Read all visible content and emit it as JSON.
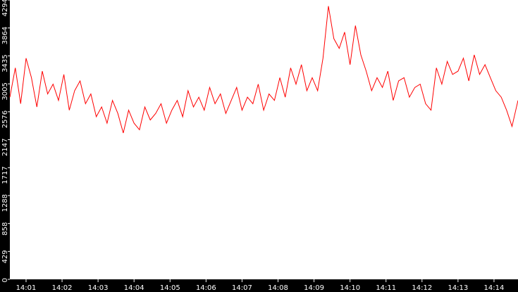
{
  "chart_data": {
    "type": "line",
    "title": "",
    "xlabel": "",
    "ylabel": "",
    "ylim": [
      0,
      4294
    ],
    "y_ticks": [
      0,
      429,
      858,
      1288,
      1717,
      2147,
      2576,
      3005,
      3435,
      3864,
      4294
    ],
    "x_range": [
      "14:00:33",
      "14:14:40"
    ],
    "x_ticks": [
      "14:01",
      "14:02",
      "14:03",
      "14:04",
      "14:05",
      "14:06",
      "14:07",
      "14:08",
      "14:09",
      "14:10",
      "14:11",
      "14:12",
      "14:13",
      "14:14"
    ],
    "grid": false,
    "legend": "none",
    "colors": {
      "line": "#ff0000",
      "plot_background": "#ffffff",
      "frame": "#000000",
      "axis_text": "#ffffff"
    },
    "series": [
      {
        "x": [
          "14:00:33",
          "14:00:42",
          "14:00:51",
          "14:01:00",
          "14:01:09",
          "14:01:18",
          "14:01:27",
          "14:01:36",
          "14:01:45",
          "14:01:54",
          "14:02:03",
          "14:02:12",
          "14:02:21",
          "14:02:30",
          "14:02:39",
          "14:02:48",
          "14:02:57",
          "14:03:06",
          "14:03:15",
          "14:03:24",
          "14:03:33",
          "14:03:42",
          "14:03:51",
          "14:04:00",
          "14:04:09",
          "14:04:18",
          "14:04:27",
          "14:04:36",
          "14:04:45",
          "14:04:54",
          "14:05:03",
          "14:05:12",
          "14:05:21",
          "14:05:30",
          "14:05:39",
          "14:05:48",
          "14:05:57",
          "14:06:06",
          "14:06:15",
          "14:06:24",
          "14:06:33",
          "14:06:42",
          "14:06:51",
          "14:07:00",
          "14:07:09",
          "14:07:18",
          "14:07:27",
          "14:07:36",
          "14:07:45",
          "14:07:54",
          "14:08:03",
          "14:08:12",
          "14:08:21",
          "14:08:30",
          "14:08:39",
          "14:08:48",
          "14:08:57",
          "14:09:06",
          "14:09:15",
          "14:09:24",
          "14:09:33",
          "14:09:42",
          "14:09:51",
          "14:10:00",
          "14:10:09",
          "14:10:18",
          "14:10:27",
          "14:10:36",
          "14:10:45",
          "14:10:54",
          "14:11:03",
          "14:11:12",
          "14:11:21",
          "14:11:30",
          "14:11:39",
          "14:11:48",
          "14:11:57",
          "14:12:06",
          "14:12:15",
          "14:12:24",
          "14:12:33",
          "14:12:42",
          "14:12:51",
          "14:13:00",
          "14:13:09",
          "14:13:18",
          "14:13:27",
          "14:13:36",
          "14:13:45",
          "14:13:54",
          "14:14:03",
          "14:14:12",
          "14:14:21",
          "14:14:30",
          "14:14:40"
        ],
        "y": [
          2800,
          3250,
          2700,
          3400,
          3100,
          2650,
          3200,
          2850,
          3000,
          2750,
          3150,
          2600,
          2900,
          3050,
          2700,
          2850,
          2500,
          2650,
          2400,
          2750,
          2550,
          2250,
          2600,
          2400,
          2300,
          2650,
          2450,
          2550,
          2700,
          2400,
          2600,
          2750,
          2500,
          2900,
          2650,
          2800,
          2600,
          2950,
          2700,
          2850,
          2550,
          2750,
          2950,
          2600,
          2800,
          2700,
          3000,
          2600,
          2850,
          2750,
          3100,
          2800,
          3250,
          3000,
          3300,
          2900,
          3100,
          2900,
          3400,
          4200,
          3700,
          3550,
          3800,
          3300,
          3900,
          3450,
          3200,
          2900,
          3100,
          2950,
          3200,
          2750,
          3050,
          3100,
          2800,
          2950,
          3000,
          2700,
          2600,
          3250,
          3000,
          3350,
          3150,
          3200,
          3400,
          3050,
          3450,
          3150,
          3300,
          3100,
          2900,
          2800,
          2600,
          2350,
          2750
        ]
      }
    ]
  }
}
